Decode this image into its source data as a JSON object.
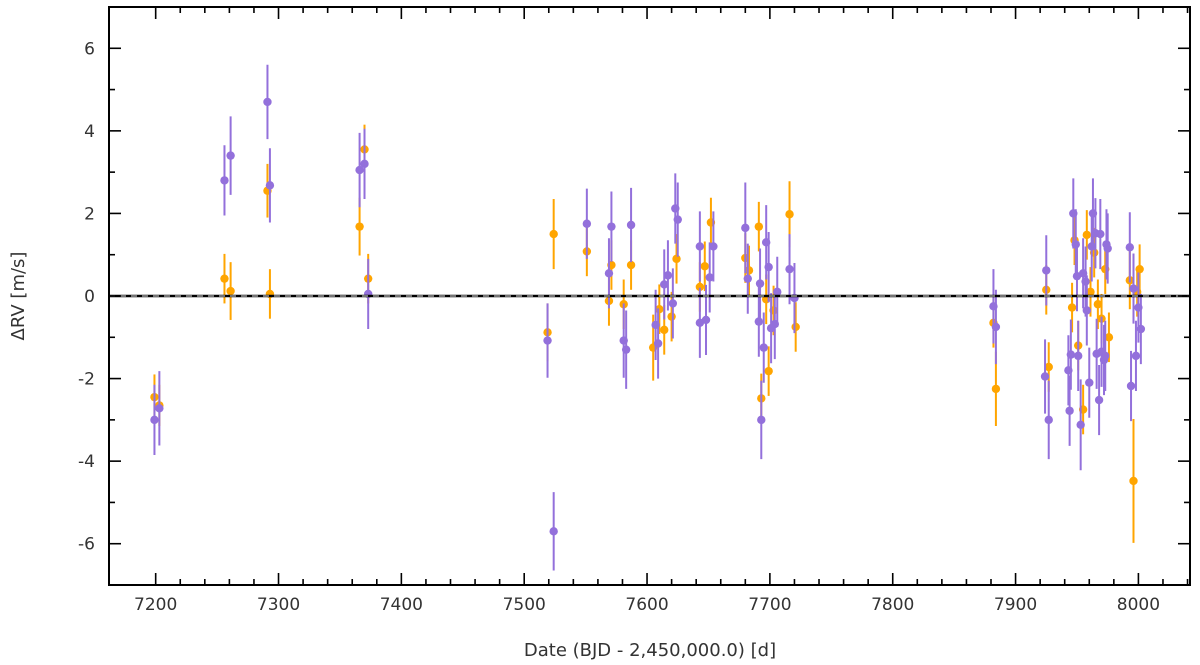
{
  "chart_data": {
    "type": "scatter",
    "title": "",
    "xlabel": "Date (BJD - 2,450,000.0) [d]",
    "ylabel": "ΔRV [m/s]",
    "xlim": [
      7162,
      8042
    ],
    "ylim": [
      -7,
      7
    ],
    "x_ticks": [
      7200,
      7300,
      7400,
      7500,
      7600,
      7700,
      7800,
      7900,
      8000
    ],
    "y_ticks": [
      -6,
      -4,
      -2,
      0,
      2,
      4,
      6
    ],
    "reference_line": 0,
    "grid": false,
    "legend": "none",
    "colors": {
      "orange": "#ffa500",
      "purple": "#9370db",
      "zero_line": "#000000",
      "zero_line_dash": "#9a9a9a"
    },
    "series": [
      {
        "color": "#ffa500",
        "points": [
          {
            "x": 7199,
            "y": -2.45,
            "err": 0.55
          },
          {
            "x": 7203,
            "y": -2.65,
            "err": 0.5
          },
          {
            "x": 7256,
            "y": 0.42,
            "err": 0.6
          },
          {
            "x": 7261,
            "y": 0.12,
            "err": 0.7
          },
          {
            "x": 7291,
            "y": 2.55,
            "err": 0.65
          },
          {
            "x": 7293,
            "y": 0.05,
            "err": 0.6
          },
          {
            "x": 7366,
            "y": 1.68,
            "err": 0.7
          },
          {
            "x": 7370,
            "y": 3.55,
            "err": 0.6
          },
          {
            "x": 7373,
            "y": 0.42,
            "err": 0.6
          },
          {
            "x": 7519,
            "y": -0.88,
            "err": 0.7
          },
          {
            "x": 7524,
            "y": 1.5,
            "err": 0.85
          },
          {
            "x": 7551,
            "y": 1.08,
            "err": 0.6
          },
          {
            "x": 7569,
            "y": -0.12,
            "err": 0.6
          },
          {
            "x": 7571,
            "y": 0.75,
            "err": 0.6
          },
          {
            "x": 7581,
            "y": -0.2,
            "err": 0.6
          },
          {
            "x": 7587,
            "y": 0.75,
            "err": 0.6
          },
          {
            "x": 7605,
            "y": -1.25,
            "err": 0.8
          },
          {
            "x": 7610,
            "y": -0.32,
            "err": 0.6
          },
          {
            "x": 7614,
            "y": -0.82,
            "err": 0.6
          },
          {
            "x": 7620,
            "y": -0.5,
            "err": 0.6
          },
          {
            "x": 7624,
            "y": 0.9,
            "err": 0.6
          },
          {
            "x": 7643,
            "y": 0.22,
            "err": 0.6
          },
          {
            "x": 7647,
            "y": 0.72,
            "err": 0.6
          },
          {
            "x": 7652,
            "y": 1.78,
            "err": 0.6
          },
          {
            "x": 7680,
            "y": 0.92,
            "err": 0.6
          },
          {
            "x": 7683,
            "y": 0.62,
            "err": 0.6
          },
          {
            "x": 7691,
            "y": 1.68,
            "err": 0.6
          },
          {
            "x": 7693,
            "y": -2.48,
            "err": 0.6
          },
          {
            "x": 7697,
            "y": -0.08,
            "err": 0.6
          },
          {
            "x": 7699,
            "y": -1.82,
            "err": 0.6
          },
          {
            "x": 7703,
            "y": -0.35,
            "err": 0.6
          },
          {
            "x": 7716,
            "y": 1.98,
            "err": 0.8
          },
          {
            "x": 7721,
            "y": -0.75,
            "err": 0.6
          },
          {
            "x": 7882,
            "y": -0.65,
            "err": 0.6
          },
          {
            "x": 7884,
            "y": -2.25,
            "err": 0.9
          },
          {
            "x": 7925,
            "y": 0.15,
            "err": 0.6
          },
          {
            "x": 7927,
            "y": -1.72,
            "err": 0.6
          },
          {
            "x": 7946,
            "y": -0.28,
            "err": 0.6
          },
          {
            "x": 7948,
            "y": 1.35,
            "err": 0.6
          },
          {
            "x": 7951,
            "y": -1.2,
            "err": 0.6
          },
          {
            "x": 7955,
            "y": -2.75,
            "err": 0.6
          },
          {
            "x": 7958,
            "y": 1.48,
            "err": 0.6
          },
          {
            "x": 7961,
            "y": 0.1,
            "err": 0.6
          },
          {
            "x": 7964,
            "y": 1.05,
            "err": 0.6
          },
          {
            "x": 7967,
            "y": -0.2,
            "err": 0.6
          },
          {
            "x": 7970,
            "y": -0.55,
            "err": 0.6
          },
          {
            "x": 7973,
            "y": 0.65,
            "err": 0.6
          },
          {
            "x": 7976,
            "y": -1.0,
            "err": 0.6
          },
          {
            "x": 7993,
            "y": 0.38,
            "err": 0.7
          },
          {
            "x": 7996,
            "y": -4.48,
            "err": 1.5
          },
          {
            "x": 7999,
            "y": 0.1,
            "err": 0.6
          },
          {
            "x": 8001,
            "y": 0.65,
            "err": 0.6
          }
        ]
      },
      {
        "color": "#9370db",
        "points": [
          {
            "x": 7199,
            "y": -3.0,
            "err": 0.85
          },
          {
            "x": 7203,
            "y": -2.72,
            "err": 0.9
          },
          {
            "x": 7256,
            "y": 2.8,
            "err": 0.85
          },
          {
            "x": 7261,
            "y": 3.4,
            "err": 0.95
          },
          {
            "x": 7291,
            "y": 4.7,
            "err": 0.9
          },
          {
            "x": 7293,
            "y": 2.68,
            "err": 0.9
          },
          {
            "x": 7366,
            "y": 3.05,
            "err": 0.9
          },
          {
            "x": 7370,
            "y": 3.2,
            "err": 0.85
          },
          {
            "x": 7373,
            "y": 0.05,
            "err": 0.85
          },
          {
            "x": 7519,
            "y": -1.08,
            "err": 0.9
          },
          {
            "x": 7524,
            "y": -5.7,
            "err": 0.95
          },
          {
            "x": 7551,
            "y": 1.75,
            "err": 0.85
          },
          {
            "x": 7569,
            "y": 0.55,
            "err": 0.85
          },
          {
            "x": 7571,
            "y": 1.68,
            "err": 0.85
          },
          {
            "x": 7581,
            "y": -1.08,
            "err": 0.9
          },
          {
            "x": 7583,
            "y": -1.3,
            "err": 0.95
          },
          {
            "x": 7587,
            "y": 1.72,
            "err": 0.9
          },
          {
            "x": 7607,
            "y": -0.7,
            "err": 0.85
          },
          {
            "x": 7609,
            "y": -1.15,
            "err": 0.85
          },
          {
            "x": 7614,
            "y": 0.28,
            "err": 0.85
          },
          {
            "x": 7617,
            "y": 0.5,
            "err": 0.85
          },
          {
            "x": 7621,
            "y": -0.18,
            "err": 0.85
          },
          {
            "x": 7623,
            "y": 2.12,
            "err": 0.85
          },
          {
            "x": 7625,
            "y": 1.85,
            "err": 0.9
          },
          {
            "x": 7643,
            "y": 1.2,
            "err": 0.85
          },
          {
            "x": 7643,
            "y": -0.65,
            "err": 0.85
          },
          {
            "x": 7648,
            "y": -0.58,
            "err": 0.85
          },
          {
            "x": 7651,
            "y": 0.45,
            "err": 0.85
          },
          {
            "x": 7654,
            "y": 1.2,
            "err": 0.85
          },
          {
            "x": 7680,
            "y": 1.65,
            "err": 1.1
          },
          {
            "x": 7682,
            "y": 0.42,
            "err": 0.85
          },
          {
            "x": 7691,
            "y": -0.62,
            "err": 0.85
          },
          {
            "x": 7692,
            "y": 0.3,
            "err": 0.85
          },
          {
            "x": 7693,
            "y": -3.0,
            "err": 0.95
          },
          {
            "x": 7695,
            "y": -1.25,
            "err": 0.85
          },
          {
            "x": 7697,
            "y": 1.3,
            "err": 0.9
          },
          {
            "x": 7699,
            "y": 0.7,
            "err": 0.85
          },
          {
            "x": 7701,
            "y": -0.78,
            "err": 0.85
          },
          {
            "x": 7704,
            "y": -0.68,
            "err": 0.85
          },
          {
            "x": 7706,
            "y": 0.1,
            "err": 0.85
          },
          {
            "x": 7716,
            "y": 0.65,
            "err": 0.85
          },
          {
            "x": 7720,
            "y": -0.05,
            "err": 0.85
          },
          {
            "x": 7882,
            "y": -0.25,
            "err": 0.9
          },
          {
            "x": 7884,
            "y": -0.75,
            "err": 0.9
          },
          {
            "x": 7925,
            "y": 0.62,
            "err": 0.85
          },
          {
            "x": 7924,
            "y": -1.95,
            "err": 0.9
          },
          {
            "x": 7927,
            "y": -3.0,
            "err": 0.95
          },
          {
            "x": 7943,
            "y": -1.8,
            "err": 0.85
          },
          {
            "x": 7944,
            "y": -2.78,
            "err": 0.85
          },
          {
            "x": 7945,
            "y": -1.42,
            "err": 0.85
          },
          {
            "x": 7947,
            "y": 2.0,
            "err": 0.85
          },
          {
            "x": 7949,
            "y": 1.25,
            "err": 0.85
          },
          {
            "x": 7950,
            "y": 0.48,
            "err": 0.85
          },
          {
            "x": 7951,
            "y": -1.45,
            "err": 0.85
          },
          {
            "x": 7953,
            "y": -3.12,
            "err": 1.1
          },
          {
            "x": 7955,
            "y": 0.55,
            "err": 0.85
          },
          {
            "x": 7957,
            "y": 0.35,
            "err": 0.85
          },
          {
            "x": 7958,
            "y": -0.35,
            "err": 0.85
          },
          {
            "x": 7960,
            "y": -2.1,
            "err": 0.85
          },
          {
            "x": 7962,
            "y": 1.2,
            "err": 0.85
          },
          {
            "x": 7963,
            "y": 2.0,
            "err": 0.85
          },
          {
            "x": 7965,
            "y": 1.52,
            "err": 0.85
          },
          {
            "x": 7966,
            "y": -1.4,
            "err": 0.85
          },
          {
            "x": 7968,
            "y": -2.52,
            "err": 0.85
          },
          {
            "x": 7969,
            "y": 1.5,
            "err": 0.85
          },
          {
            "x": 7970,
            "y": -1.35,
            "err": 0.85
          },
          {
            "x": 7972,
            "y": -1.55,
            "err": 0.85
          },
          {
            "x": 7973,
            "y": -1.45,
            "err": 0.85
          },
          {
            "x": 7974,
            "y": 1.25,
            "err": 0.85
          },
          {
            "x": 7975,
            "y": 1.15,
            "err": 0.85
          },
          {
            "x": 7993,
            "y": 1.18,
            "err": 0.85
          },
          {
            "x": 7994,
            "y": -2.18,
            "err": 0.85
          },
          {
            "x": 7996,
            "y": 0.18,
            "err": 0.85
          },
          {
            "x": 7998,
            "y": -1.45,
            "err": 0.85
          },
          {
            "x": 8000,
            "y": -0.28,
            "err": 0.85
          },
          {
            "x": 8002,
            "y": -0.8,
            "err": 0.85
          }
        ]
      }
    ]
  }
}
